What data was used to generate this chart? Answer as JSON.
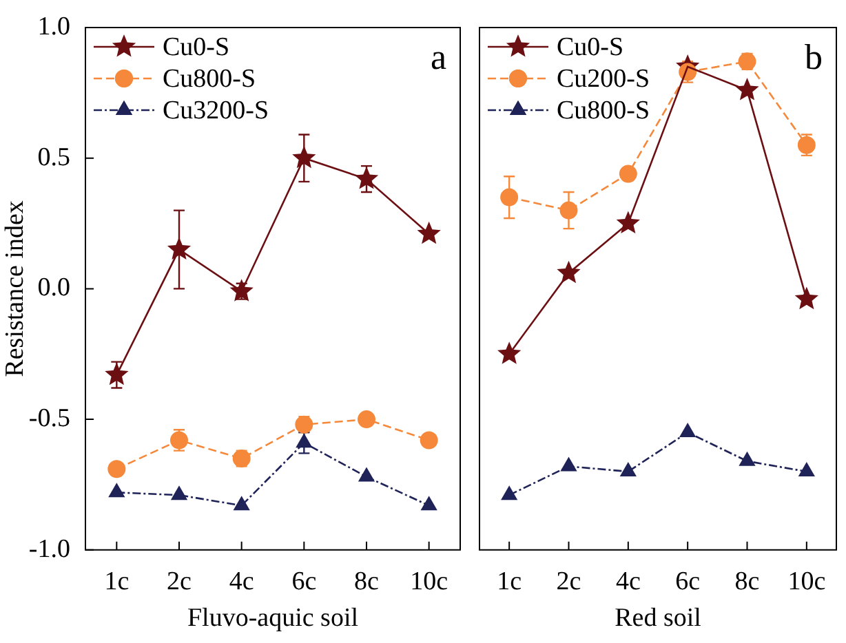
{
  "chart_data": [
    {
      "type": "line",
      "xlabel": "Fluvo-aquic soil",
      "ylabel": "Resistance index",
      "annotations": [
        "a"
      ],
      "legend": "top left",
      "categories": [
        "1c",
        "2c",
        "4c",
        "6c",
        "8c",
        "10c"
      ],
      "ylim": [
        -1,
        1
      ],
      "yticks": [
        {
          "value": -1,
          "label": "-1.0"
        },
        {
          "value": -0.5,
          "label": "-0.5"
        },
        {
          "value": 0,
          "label": "0.0"
        },
        {
          "value": 0.5,
          "label": "0.5"
        },
        {
          "value": 1,
          "label": "1.0"
        }
      ],
      "series": [
        {
          "name": "Cu0-S",
          "color": "#6b0f12",
          "marker": "star",
          "line_style": "solid",
          "values": [
            -0.33,
            0.15,
            -0.01,
            0.5,
            0.42,
            0.21
          ],
          "errors": [
            0.05,
            0.15,
            0.03,
            0.09,
            0.05,
            null
          ]
        },
        {
          "name": "Cu800-S",
          "color": "#f5883a",
          "marker": "circle",
          "line_style": "dashed",
          "values": [
            -0.69,
            -0.58,
            -0.65,
            -0.52,
            -0.5,
            -0.58
          ],
          "errors": [
            null,
            0.04,
            0.03,
            0.03,
            null,
            null
          ]
        },
        {
          "name": "Cu3200-S",
          "color": "#1f2358",
          "marker": "triangle",
          "line_style": "dotted",
          "values": [
            -0.78,
            -0.79,
            -0.83,
            -0.59,
            -0.72,
            -0.83
          ],
          "errors": [
            null,
            null,
            null,
            0.04,
            null,
            null
          ]
        }
      ]
    },
    {
      "type": "line",
      "xlabel": "Red soil",
      "annotations": [
        "b"
      ],
      "legend": "top left",
      "tick_labels": "x",
      "categories": [
        "1c",
        "2c",
        "4c",
        "6c",
        "8c",
        "10c"
      ],
      "ylim": [
        -1,
        1
      ],
      "series": [
        {
          "name": "Cu0-S",
          "color": "#6b0f12",
          "marker": "star",
          "line_style": "solid",
          "values": [
            -0.25,
            0.06,
            0.25,
            0.85,
            0.76,
            -0.04
          ]
        },
        {
          "name": "Cu200-S",
          "color": "#f5883a",
          "marker": "circle",
          "line_style": "dashed",
          "values": [
            0.35,
            0.3,
            0.44,
            0.83,
            0.87,
            0.55
          ],
          "errors": [
            0.08,
            0.07,
            null,
            0.04,
            0.03,
            0.04
          ]
        },
        {
          "name": "Cu800-S",
          "color": "#1f2358",
          "marker": "triangle",
          "line_style": "dotted",
          "values": [
            -0.79,
            -0.68,
            -0.7,
            -0.55,
            -0.66,
            -0.7
          ]
        }
      ]
    }
  ]
}
